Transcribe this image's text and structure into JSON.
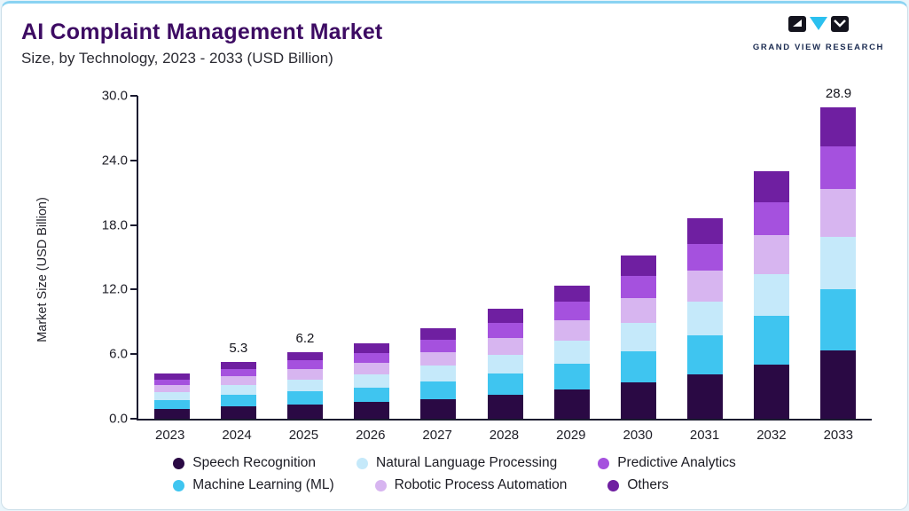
{
  "header": {
    "title": "AI Complaint Management Market",
    "subtitle": "Size, by Technology, 2023 - 2033 (USD Billion)",
    "logo_text": "GRAND VIEW RESEARCH"
  },
  "chart_data": {
    "type": "bar",
    "stacked": true,
    "title": "AI Complaint Management Market Size, by Technology, 2023 - 2033 (USD Billion)",
    "xlabel": "",
    "ylabel": "Market Size (USD Billion)",
    "ylim": [
      0,
      30
    ],
    "yticks": [
      "0.0",
      "6.0",
      "12.0",
      "18.0",
      "24.0",
      "30.0"
    ],
    "grid": false,
    "legend_position": "bottom",
    "categories": [
      "2023",
      "2024",
      "2025",
      "2026",
      "2027",
      "2028",
      "2029",
      "2030",
      "2031",
      "2032",
      "2033"
    ],
    "series": [
      {
        "name": "Speech Recognition",
        "color": "#2a0944",
        "values": [
          0.92,
          1.17,
          1.36,
          1.54,
          1.85,
          2.24,
          2.73,
          3.34,
          4.09,
          5.06,
          6.36
        ]
      },
      {
        "name": "Machine Learning (ML)",
        "color": "#3fc5f0",
        "values": [
          0.82,
          1.03,
          1.21,
          1.37,
          1.64,
          1.99,
          2.42,
          2.96,
          3.63,
          4.49,
          5.64
        ]
      },
      {
        "name": "Natural Language Processing",
        "color": "#c5e9fa",
        "values": [
          0.71,
          0.9,
          1.05,
          1.19,
          1.43,
          1.73,
          2.11,
          2.58,
          3.16,
          3.91,
          4.91
        ]
      },
      {
        "name": "Robotic Process Automation",
        "color": "#d7b5f0",
        "values": [
          0.65,
          0.82,
          0.96,
          1.09,
          1.3,
          1.58,
          1.92,
          2.36,
          2.88,
          3.57,
          4.48
        ]
      },
      {
        "name": "Predictive Analytics",
        "color": "#a551de",
        "values": [
          0.57,
          0.72,
          0.84,
          0.94,
          1.13,
          1.38,
          1.67,
          2.05,
          2.51,
          3.1,
          3.9
        ]
      },
      {
        "name": "Others",
        "color": "#6f1fa1",
        "values": [
          0.53,
          0.66,
          0.78,
          0.88,
          1.05,
          1.28,
          1.55,
          1.9,
          2.33,
          2.88,
          3.61
        ]
      }
    ],
    "totals": [
      4.2,
      5.3,
      6.2,
      7.0,
      8.4,
      10.2,
      12.4,
      15.2,
      18.6,
      23.0,
      28.9
    ],
    "bar_labels": {
      "2024": "5.3",
      "2025": "6.2",
      "2033": "28.9"
    }
  },
  "legend": {
    "rows": [
      [
        "Speech Recognition",
        "Natural Language Processing",
        "Predictive Analytics"
      ],
      [
        "Machine Learning (ML)",
        "Robotic Process Automation",
        "Others"
      ]
    ]
  }
}
